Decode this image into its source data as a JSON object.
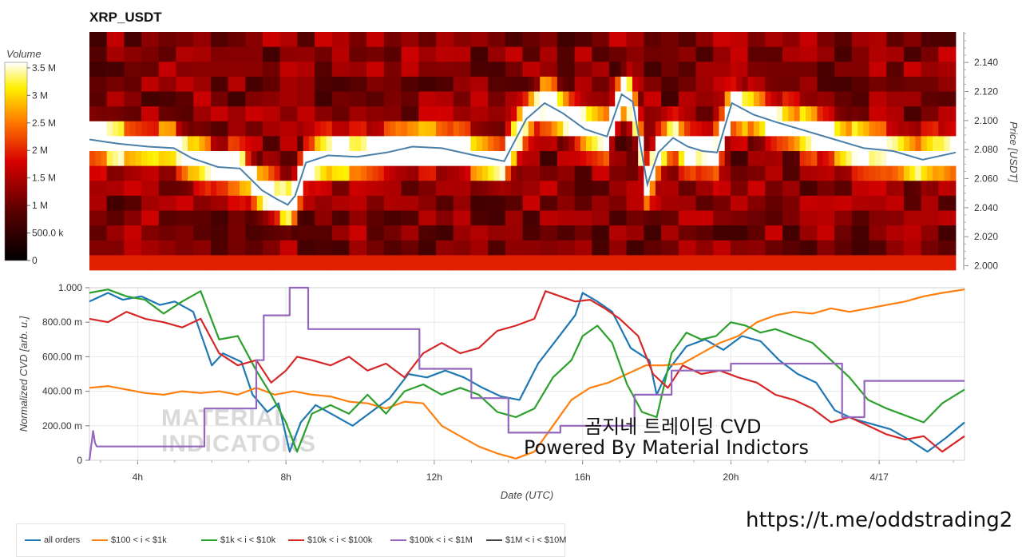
{
  "header": {
    "title": "XRP_USDT"
  },
  "watermark": {
    "line1": "MATERIAL",
    "line2": "INDICATORS"
  },
  "overlay": {
    "line1": "곰지네 트레이딩 CVD",
    "line2": "Powered By Material Indictors",
    "url": "https://t.me/oddstrading2"
  },
  "colors": {
    "all_orders": "#1f77b4",
    "s100_1k": "#ff7f0e",
    "s1k_10k": "#2ca02c",
    "s10k_100k": "#d62728",
    "s100k_1M": "#9467bd",
    "s1M_10M": "#444444"
  },
  "chart_data": [
    {
      "type": "heatmap",
      "title": "XRP_USDT",
      "colorbar": {
        "label": "Volume",
        "ticks": [
          "0",
          "500.0 k",
          "1 M",
          "1.5 M",
          "2 M",
          "2.5 M",
          "3 M",
          "3.5 M"
        ],
        "range": [
          0,
          3600000
        ]
      },
      "ylabel": "Price [USDT]",
      "yticks": [
        "2.000",
        "2.020",
        "2.040",
        "2.060",
        "2.080",
        "2.100",
        "2.120",
        "2.140"
      ],
      "ylim": [
        1.997,
        2.161
      ],
      "time_range_hours": [
        2.7,
        26.3
      ],
      "price_line": {
        "color": "#4a7fa8",
        "t": [
          2.7,
          3.5,
          4.3,
          5.0,
          5.5,
          6.2,
          6.8,
          7.4,
          7.8,
          8.1,
          8.3,
          8.6,
          9.2,
          10.0,
          10.8,
          11.5,
          12.3,
          13.2,
          14.0,
          14.6,
          15.1,
          15.6,
          16.2,
          16.8,
          17.2,
          17.5,
          17.9,
          18.2,
          18.6,
          19.0,
          19.4,
          19.8,
          20.2,
          20.8,
          21.4,
          22.2,
          23.0,
          23.8,
          24.6,
          25.4,
          26.3
        ],
        "price": [
          2.087,
          2.084,
          2.082,
          2.081,
          2.074,
          2.068,
          2.067,
          2.052,
          2.046,
          2.042,
          2.048,
          2.071,
          2.076,
          2.075,
          2.078,
          2.082,
          2.081,
          2.076,
          2.072,
          2.101,
          2.112,
          2.105,
          2.094,
          2.089,
          2.118,
          2.113,
          2.056,
          2.078,
          2.088,
          2.082,
          2.079,
          2.078,
          2.112,
          2.104,
          2.099,
          2.093,
          2.087,
          2.081,
          2.079,
          2.073,
          2.078
        ]
      }
    },
    {
      "type": "line",
      "xlabel": "Date (UTC)",
      "ylabel": "Normalized CVD [arb. u.]",
      "xticks": [
        "4h",
        "8h",
        "12h",
        "16h",
        "20h",
        "4/17"
      ],
      "xtick_values": [
        4,
        8,
        12,
        16,
        20,
        24
      ],
      "xlim": [
        2.7,
        26.3
      ],
      "yticks": [
        "0",
        "200.00 m",
        "400.00 m",
        "600.00 m",
        "800.00 m",
        "1.000"
      ],
      "ytick_values": [
        0,
        0.2,
        0.4,
        0.6,
        0.8,
        1.0
      ],
      "ylim": [
        0,
        1.0
      ],
      "grid": true,
      "legend_position": "bottom",
      "series": [
        {
          "name": "all orders",
          "color": "#1f77b4",
          "t": [
            2.7,
            3.2,
            3.6,
            4.1,
            4.6,
            5.0,
            5.5,
            6.0,
            6.3,
            6.8,
            7.1,
            7.5,
            7.8,
            8.1,
            8.4,
            8.8,
            9.3,
            9.8,
            10.3,
            10.8,
            11.3,
            11.8,
            12.3,
            12.8,
            13.3,
            13.8,
            14.3,
            14.8,
            15.3,
            15.8,
            16.0,
            16.4,
            16.8,
            17.3,
            17.8,
            18.0,
            18.3,
            18.8,
            19.3,
            19.8,
            20.3,
            20.8,
            21.3,
            21.8,
            22.3,
            22.8,
            23.3,
            23.8,
            24.3,
            24.8,
            25.3,
            25.8,
            26.3
          ],
          "values": [
            0.92,
            0.97,
            0.93,
            0.95,
            0.9,
            0.92,
            0.86,
            0.55,
            0.62,
            0.57,
            0.38,
            0.28,
            0.33,
            0.05,
            0.22,
            0.32,
            0.26,
            0.2,
            0.28,
            0.36,
            0.5,
            0.48,
            0.52,
            0.48,
            0.42,
            0.37,
            0.35,
            0.56,
            0.7,
            0.84,
            0.97,
            0.92,
            0.86,
            0.65,
            0.58,
            0.38,
            0.52,
            0.66,
            0.7,
            0.64,
            0.72,
            0.69,
            0.58,
            0.5,
            0.45,
            0.29,
            0.24,
            0.21,
            0.18,
            0.12,
            0.05,
            0.13,
            0.22
          ]
        },
        {
          "name": "$100 < i < $1k",
          "color": "#ff7f0e",
          "t": [
            2.7,
            3.2,
            3.7,
            4.2,
            4.7,
            5.2,
            5.7,
            6.2,
            6.7,
            7.2,
            7.7,
            8.2,
            8.7,
            9.2,
            9.7,
            10.2,
            10.7,
            11.2,
            11.7,
            12.2,
            12.7,
            13.2,
            13.7,
            14.2,
            14.7,
            15.2,
            15.7,
            16.2,
            16.7,
            17.2,
            17.7,
            18.2,
            18.7,
            19.2,
            19.7,
            20.2,
            20.7,
            21.2,
            21.7,
            22.2,
            22.7,
            23.2,
            23.7,
            24.2,
            24.7,
            25.2,
            25.7,
            26.3
          ],
          "values": [
            0.42,
            0.43,
            0.41,
            0.39,
            0.38,
            0.4,
            0.39,
            0.4,
            0.38,
            0.42,
            0.38,
            0.4,
            0.38,
            0.37,
            0.34,
            0.33,
            0.3,
            0.34,
            0.33,
            0.2,
            0.14,
            0.08,
            0.04,
            0.01,
            0.05,
            0.2,
            0.35,
            0.42,
            0.45,
            0.5,
            0.55,
            0.55,
            0.56,
            0.62,
            0.68,
            0.72,
            0.8,
            0.84,
            0.86,
            0.85,
            0.88,
            0.86,
            0.88,
            0.9,
            0.92,
            0.95,
            0.97,
            0.99
          ]
        },
        {
          "name": "$1k < i < $10k",
          "color": "#2ca02c",
          "t": [
            2.7,
            3.2,
            3.7,
            4.2,
            4.7,
            5.2,
            5.7,
            6.2,
            6.7,
            7.2,
            7.6,
            8.0,
            8.3,
            8.7,
            9.2,
            9.7,
            10.2,
            10.7,
            11.2,
            11.7,
            12.2,
            12.7,
            13.2,
            13.7,
            14.2,
            14.7,
            15.2,
            15.7,
            16.0,
            16.4,
            16.8,
            17.2,
            17.6,
            18.0,
            18.4,
            18.8,
            19.2,
            19.6,
            20.0,
            20.4,
            20.8,
            21.2,
            21.7,
            22.2,
            22.7,
            23.2,
            23.7,
            24.2,
            24.7,
            25.2,
            25.7,
            26.3
          ],
          "values": [
            0.97,
            0.99,
            0.95,
            0.93,
            0.85,
            0.92,
            0.98,
            0.7,
            0.72,
            0.52,
            0.38,
            0.22,
            0.05,
            0.27,
            0.32,
            0.27,
            0.38,
            0.27,
            0.4,
            0.44,
            0.38,
            0.42,
            0.38,
            0.28,
            0.25,
            0.3,
            0.48,
            0.58,
            0.72,
            0.78,
            0.68,
            0.44,
            0.28,
            0.25,
            0.62,
            0.74,
            0.7,
            0.72,
            0.8,
            0.78,
            0.74,
            0.76,
            0.72,
            0.68,
            0.58,
            0.48,
            0.35,
            0.3,
            0.26,
            0.22,
            0.33,
            0.41
          ]
        },
        {
          "name": "$10k < i < $100k",
          "color": "#d62728",
          "t": [
            2.7,
            3.2,
            3.7,
            4.2,
            4.7,
            5.2,
            5.7,
            6.2,
            6.7,
            7.2,
            7.6,
            8.0,
            8.3,
            8.7,
            9.2,
            9.7,
            10.2,
            10.7,
            11.2,
            11.7,
            12.2,
            12.7,
            13.2,
            13.7,
            14.2,
            14.7,
            15.0,
            15.4,
            15.8,
            16.2,
            16.6,
            17.0,
            17.5,
            17.9,
            18.3,
            18.7,
            19.2,
            19.7,
            20.2,
            20.7,
            21.2,
            21.7,
            22.2,
            22.7,
            23.2,
            23.7,
            24.2,
            24.7,
            25.2,
            25.7,
            26.3
          ],
          "values": [
            0.82,
            0.8,
            0.86,
            0.82,
            0.8,
            0.77,
            0.82,
            0.62,
            0.55,
            0.58,
            0.45,
            0.52,
            0.6,
            0.58,
            0.55,
            0.6,
            0.52,
            0.56,
            0.48,
            0.62,
            0.68,
            0.62,
            0.65,
            0.75,
            0.78,
            0.82,
            0.98,
            0.95,
            0.92,
            0.93,
            0.88,
            0.82,
            0.72,
            0.5,
            0.42,
            0.55,
            0.5,
            0.52,
            0.48,
            0.45,
            0.38,
            0.35,
            0.3,
            0.22,
            0.25,
            0.2,
            0.15,
            0.12,
            0.14,
            0.05,
            0.14
          ]
        },
        {
          "name": "$100k < i < $1M",
          "color": "#9467bd",
          "t": [
            2.7,
            2.8,
            2.85,
            2.9,
            3.0,
            5.8,
            5.8,
            6.2,
            6.2,
            7.2,
            7.2,
            7.4,
            7.4,
            7.6,
            7.6,
            8.1,
            8.1,
            8.6,
            8.6,
            11.6,
            11.6,
            12.4,
            12.4,
            13.0,
            13.0,
            14.0,
            14.0,
            15.4,
            15.4,
            17.4,
            17.4,
            18.4,
            18.4,
            19.6,
            19.6,
            20.0,
            20.0,
            21.6,
            21.6,
            23.0,
            23.0,
            23.6,
            23.6,
            26.3
          ],
          "values": [
            0.0,
            0.17,
            0.1,
            0.08,
            0.08,
            0.08,
            0.3,
            0.3,
            0.3,
            0.3,
            0.58,
            0.58,
            0.84,
            0.84,
            0.84,
            0.84,
            1.0,
            1.0,
            0.76,
            0.76,
            0.53,
            0.53,
            0.53,
            0.53,
            0.36,
            0.36,
            0.16,
            0.16,
            0.2,
            0.2,
            0.38,
            0.38,
            0.52,
            0.52,
            0.52,
            0.52,
            0.56,
            0.56,
            0.56,
            0.56,
            0.25,
            0.25,
            0.46,
            0.46
          ]
        },
        {
          "name": "$1M < i < $10M",
          "color": "#444444",
          "t": [],
          "values": []
        }
      ]
    }
  ]
}
